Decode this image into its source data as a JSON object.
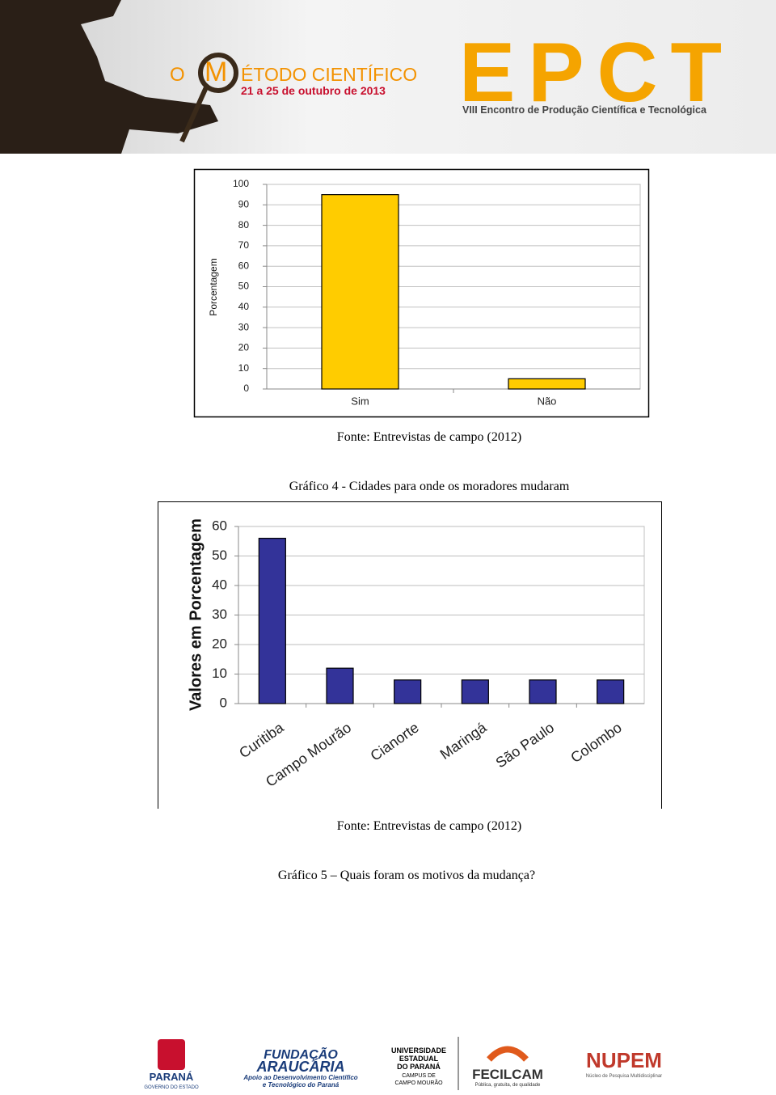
{
  "header": {
    "title_prefix": "O",
    "title_initial": "M",
    "title_rest": "ÉTODO CIENTÍFICO",
    "dates": "21 a 25 de outubro de 2013",
    "acronym": "EPCT",
    "subtitle": "VIII Encontro de Produção Científica e Tecnológica"
  },
  "chart_data": [
    {
      "type": "bar",
      "ylabel": "Porcentagem",
      "categories": [
        "Sim",
        "Não"
      ],
      "values": [
        95,
        5
      ],
      "color": "#ffcc00",
      "ylim": [
        0,
        100
      ],
      "yticks": [
        0,
        10,
        20,
        30,
        40,
        50,
        60,
        70,
        80,
        90,
        100
      ],
      "grid": true
    },
    {
      "type": "bar",
      "ylabel": "Valores em Porcentagem",
      "categories": [
        "Curitiba",
        "Campo Mourão",
        "Cianorte",
        "Maringá",
        "São Paulo",
        "Colombo"
      ],
      "values": [
        56,
        12,
        8,
        8,
        8,
        8
      ],
      "color": "#333399",
      "ylim": [
        0,
        60
      ],
      "yticks": [
        0,
        10,
        20,
        30,
        40,
        50,
        60
      ],
      "grid": true
    }
  ],
  "texts": {
    "source_1": "Fonte: Entrevistas de campo (2012)",
    "caption_4": "Gráfico 4 - Cidades para onde os moradores mudaram",
    "source_2": "Fonte: Entrevistas de campo (2012)",
    "caption_5": "Gráfico 5 – Quais foram os motivos da mudança?"
  },
  "footer": {
    "parana": "PARANÁ",
    "governo": "GOVERNO DO ESTADO",
    "fundacao": "FUNDAÇÃO",
    "araucaria": "ARAUCÁRIA",
    "apoio_1": "Apoio ao Desenvolvimento Científico",
    "apoio_2": "e Tecnológico do Paraná",
    "unespar_1": "UNIVERSIDADE",
    "unespar_2": "ESTADUAL",
    "unespar_3": "DO PARANÁ",
    "unespar_4": "CAMPUS DE",
    "unespar_5": "CAMPO MOURÃO",
    "fecilcam": "FECILCAM",
    "fecilcam_motto": "Pública, gratuita, de qualidade",
    "nupem": "NUPEM",
    "nupem_sub": "Núcleo de Pesquisa Multidisciplinar"
  }
}
